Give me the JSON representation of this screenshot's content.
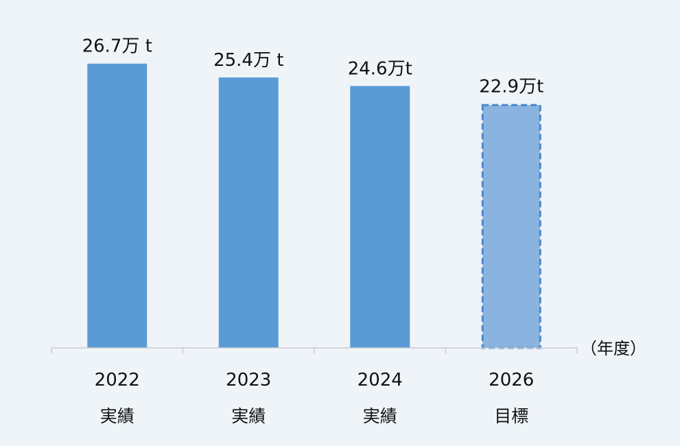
{
  "chart_data": {
    "type": "bar",
    "categories": [
      "2022",
      "2023",
      "2024",
      "2026"
    ],
    "category_sublabels": [
      "実績",
      "実績",
      "実績",
      "目標"
    ],
    "values": [
      26.7,
      25.4,
      24.6,
      22.9
    ],
    "value_unit": "万t",
    "data_labels": [
      "26.7万 t",
      "25.4万 t",
      "24.6万t",
      "22.9万t"
    ],
    "bar_styles": [
      "actual",
      "actual",
      "actual",
      "target"
    ],
    "xlabel": "（年度）",
    "ylabel": "",
    "title": "",
    "ylim": [
      0,
      31
    ],
    "grid": false,
    "legend": "none",
    "colors": {
      "background": "#eff4f9",
      "actual": "#5b9bd5",
      "target_fill": "#8ab4df",
      "target_border": "#4a86d0",
      "axis": "#c8ccd2",
      "text": "#111111"
    }
  }
}
